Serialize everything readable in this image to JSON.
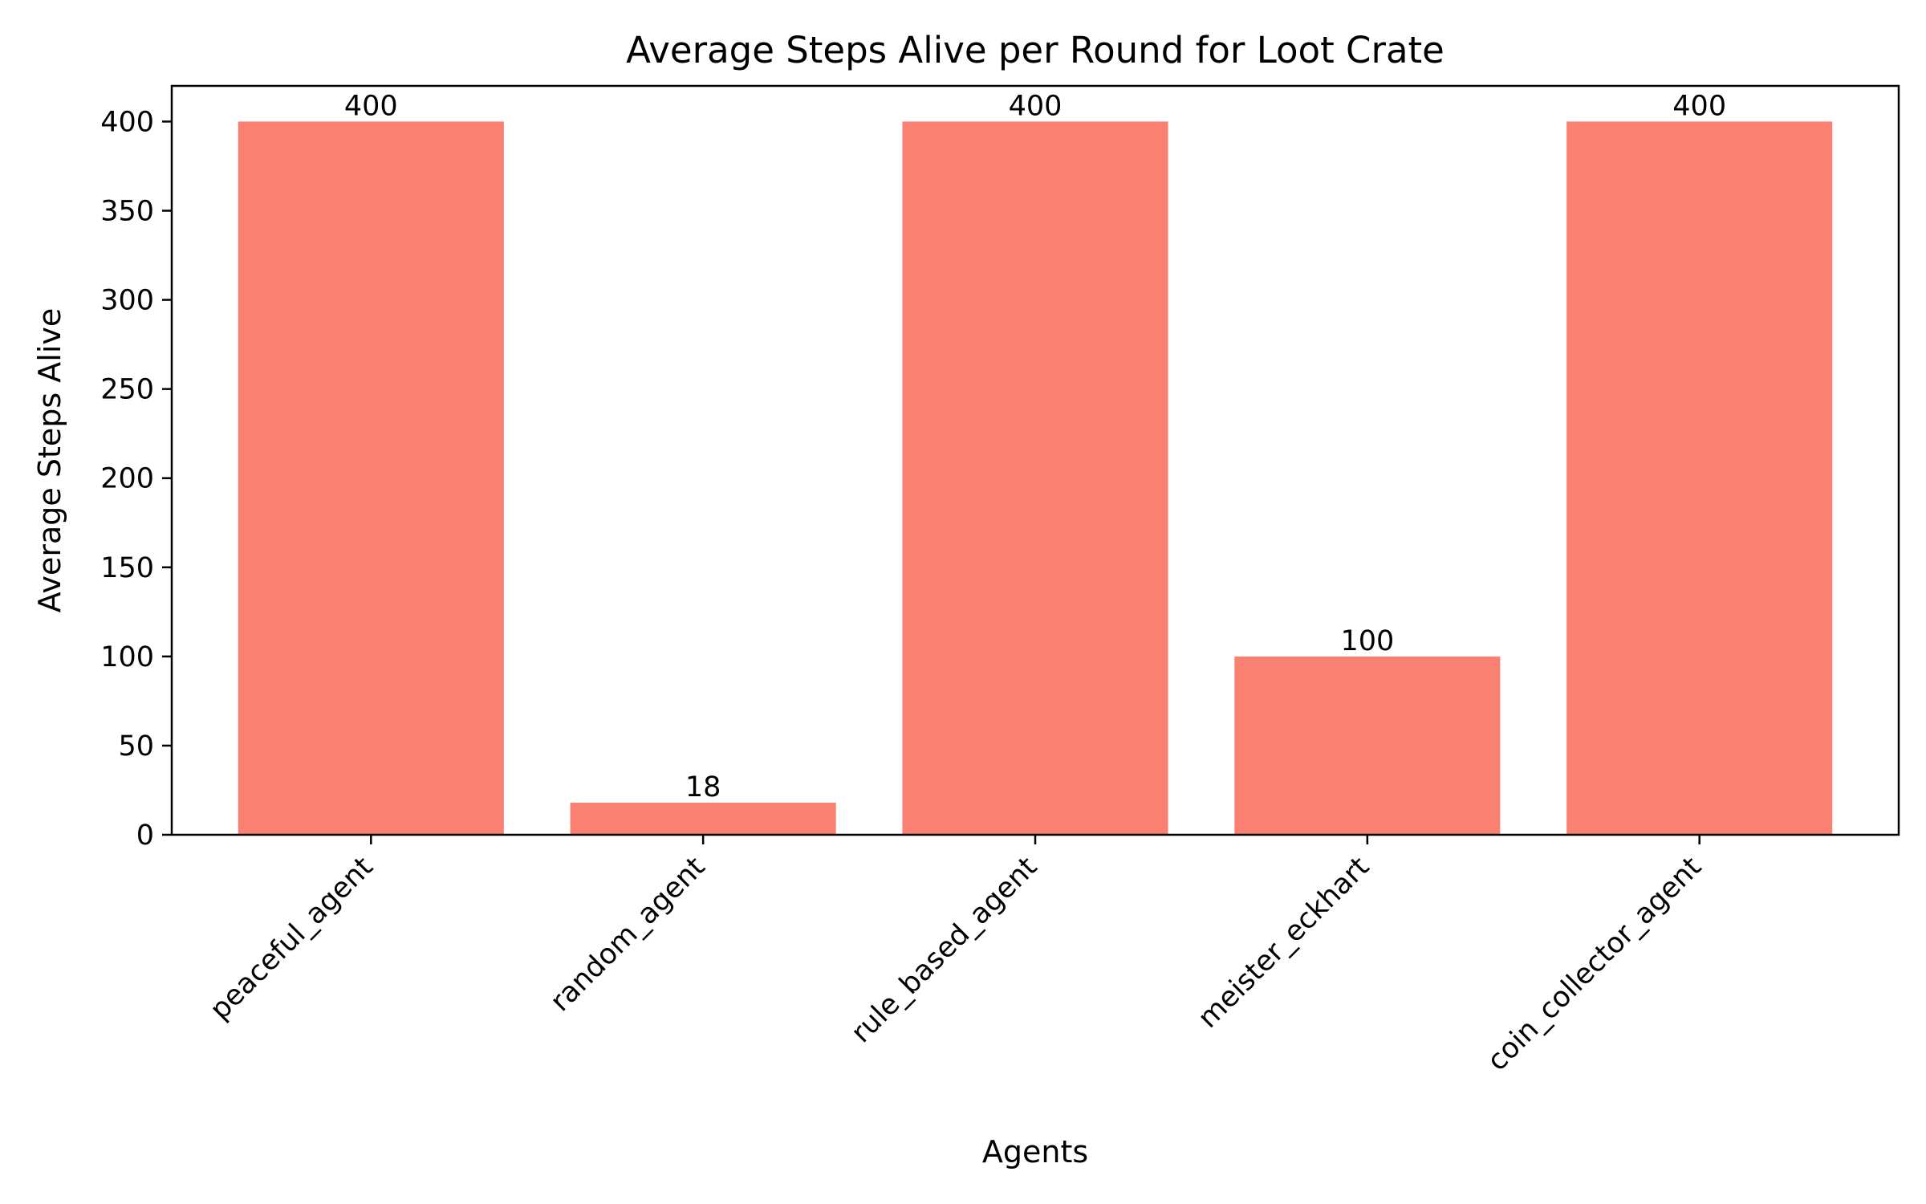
{
  "chart_data": {
    "type": "bar",
    "title": "Average Steps Alive per Round for Loot Crate",
    "xlabel": "Agents",
    "ylabel": "Average Steps Alive",
    "categories": [
      "peaceful_agent",
      "random_agent",
      "rule_based_agent",
      "meister_eckhart",
      "coin_collector_agent"
    ],
    "values": [
      400,
      18,
      400,
      100,
      400
    ],
    "data_labels": [
      "400",
      "18",
      "400",
      "100",
      "400"
    ],
    "ylim": [
      0,
      420
    ],
    "yticks": [
      0,
      50,
      100,
      150,
      200,
      250,
      300,
      350,
      400
    ],
    "bar_color": "#fa8072",
    "grid": false,
    "legend": "none"
  }
}
